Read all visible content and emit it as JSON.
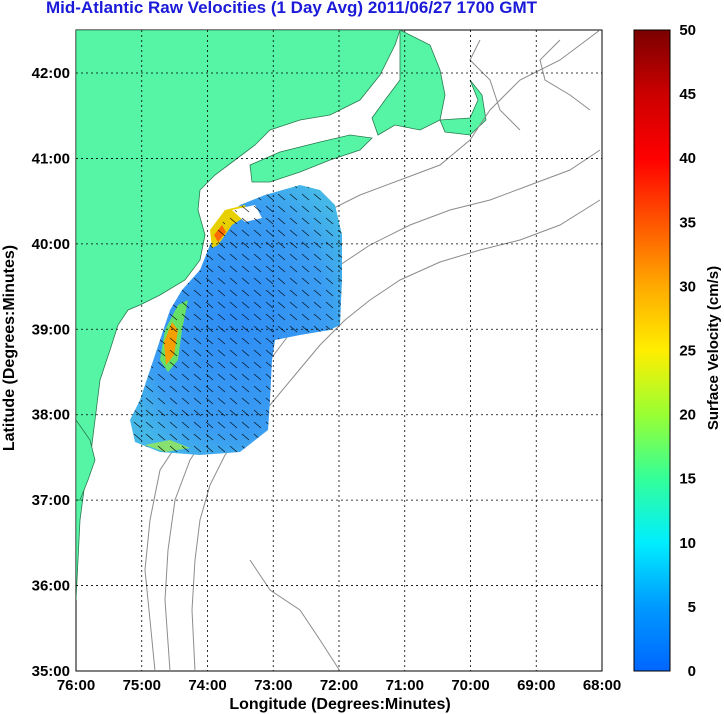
{
  "title": "Mid-Atlantic Raw Velocities (1 Day Avg) 2011/06/27 1700 GMT",
  "xlabel": "Longitude (Degrees:Minutes)",
  "ylabel": "Latitude (Degrees:Minutes)",
  "x_ticks": [
    "76:00",
    "75:00",
    "74:00",
    "73:00",
    "72:00",
    "71:00",
    "70:00",
    "69:00",
    "68:00"
  ],
  "y_ticks": [
    "42:00",
    "41:00",
    "40:00",
    "39:00",
    "38:00",
    "37:00",
    "36:00",
    "35:00"
  ],
  "colorbar": {
    "label": "Surface Velocity (cm/s)",
    "ticks": [
      "50",
      "45",
      "40",
      "35",
      "30",
      "25",
      "20",
      "15",
      "10",
      "5",
      "0"
    ]
  },
  "colors": {
    "land": "#55f5a5",
    "title": "#1a1ad8",
    "coast": "#808080"
  }
}
